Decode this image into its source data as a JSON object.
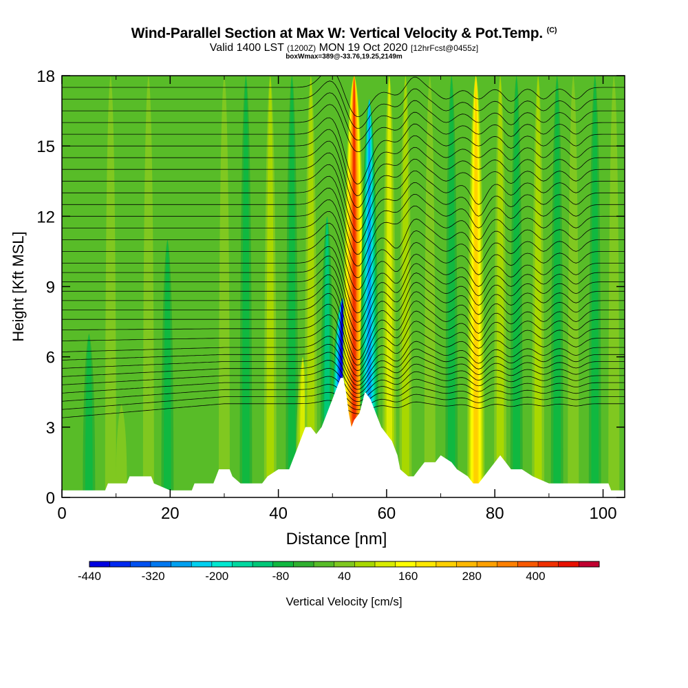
{
  "title": {
    "main": "Wind-Parallel Section at Max W: Vertical Velocity & Pot.Temp.",
    "copyright": "(C)",
    "valid_prefix": "Valid 1400 LST",
    "valid_utc": "(1200Z)",
    "valid_date": "MON 19 Oct 2020",
    "forecast": "[12hrFcst@0455z]",
    "subtitle": "boxWmax=389@-33.76,19.25,2149m"
  },
  "chart_data": {
    "type": "heatmap",
    "title": "Wind-Parallel Section at Max W: Vertical Velocity & Pot.Temp.",
    "xlabel": "Distance [nm]",
    "ylabel": "Height [Kft MSL]",
    "xlim": [
      0,
      104
    ],
    "ylim": [
      0,
      18
    ],
    "x_ticks": [
      "0",
      "20",
      "40",
      "60",
      "80",
      "100"
    ],
    "y_ticks": [
      "0",
      "3",
      "6",
      "9",
      "12",
      "15",
      "18"
    ],
    "colorbar": {
      "label": "Vertical Velocity [cm/s]",
      "tick_labels": [
        "-440",
        "-320",
        "-200",
        "-80",
        "40",
        "160",
        "280",
        "400"
      ],
      "min": -440,
      "max": 520,
      "step": 40,
      "colors": [
        "#0000e0",
        "#0028f0",
        "#0050f0",
        "#0078f0",
        "#00a0f0",
        "#00d0f0",
        "#00e8d0",
        "#00d8a0",
        "#00c878",
        "#10b840",
        "#30b030",
        "#58bc28",
        "#80c820",
        "#a8d800",
        "#d8ec00",
        "#ffff00",
        "#ffe800",
        "#ffd000",
        "#ffb800",
        "#ffa000",
        "#ff8000",
        "#f85800",
        "#f03000",
        "#e81000",
        "#c00030"
      ]
    },
    "terrain_kft": [
      [
        0,
        0.3
      ],
      [
        4,
        0.3
      ],
      [
        8,
        0.3
      ],
      [
        8.5,
        0.6
      ],
      [
        12,
        0.6
      ],
      [
        12.5,
        0.9
      ],
      [
        16.5,
        0.9
      ],
      [
        17,
        0.6
      ],
      [
        20,
        0.3
      ],
      [
        24,
        0.3
      ],
      [
        24.5,
        0.6
      ],
      [
        28,
        0.6
      ],
      [
        28.5,
        0.9
      ],
      [
        29,
        1.2
      ],
      [
        31,
        1.2
      ],
      [
        31.5,
        0.9
      ],
      [
        33,
        0.6
      ],
      [
        37,
        0.6
      ],
      [
        38,
        0.9
      ],
      [
        40,
        1.2
      ],
      [
        42,
        1.2
      ],
      [
        43,
        1.8
      ],
      [
        44,
        2.4
      ],
      [
        45,
        3.0
      ],
      [
        46,
        3.0
      ],
      [
        47,
        2.7
      ],
      [
        48,
        3.0
      ],
      [
        49,
        3.6
      ],
      [
        50,
        4.2
      ],
      [
        51,
        4.8
      ],
      [
        51.5,
        5.1
      ],
      [
        52,
        5.1
      ],
      [
        52.5,
        4.5
      ],
      [
        53,
        3.6
      ],
      [
        53.5,
        3.0
      ],
      [
        54,
        3.3
      ],
      [
        55,
        3.6
      ],
      [
        56,
        4.5
      ],
      [
        57,
        4.2
      ],
      [
        58,
        3.6
      ],
      [
        59,
        3.0
      ],
      [
        60,
        2.7
      ],
      [
        61,
        2.4
      ],
      [
        62,
        1.8
      ],
      [
        62.5,
        1.2
      ],
      [
        64,
        0.9
      ],
      [
        65,
        0.9
      ],
      [
        66,
        1.2
      ],
      [
        67,
        1.5
      ],
      [
        69,
        1.5
      ],
      [
        70,
        1.8
      ],
      [
        72,
        1.5
      ],
      [
        73,
        1.2
      ],
      [
        75,
        0.9
      ],
      [
        76,
        0.6
      ],
      [
        77,
        0.6
      ],
      [
        78,
        0.9
      ],
      [
        79,
        1.2
      ],
      [
        81,
        1.8
      ],
      [
        82,
        1.5
      ],
      [
        83,
        1.2
      ],
      [
        85,
        1.2
      ],
      [
        87,
        0.9
      ],
      [
        90,
        0.6
      ],
      [
        94,
        0.6
      ],
      [
        98,
        0.6
      ],
      [
        101,
        0.6
      ],
      [
        101.5,
        0.3
      ],
      [
        104,
        0.3
      ]
    ],
    "w_columns_cms": [
      {
        "x": 5,
        "w": -60,
        "top_kft": 7
      },
      {
        "x": 9,
        "w": 50,
        "top_kft": 18
      },
      {
        "x": 11,
        "w": 60,
        "top_kft": 4
      },
      {
        "x": 16,
        "w": 60,
        "top_kft": 18
      },
      {
        "x": 19.5,
        "w": -40,
        "top_kft": 11
      },
      {
        "x": 30,
        "w": 40,
        "top_kft": 18
      },
      {
        "x": 34,
        "w": -40,
        "top_kft": 18
      },
      {
        "x": 38.5,
        "w": 80,
        "top_kft": 18
      },
      {
        "x": 42.5,
        "w": -60,
        "top_kft": 18
      },
      {
        "x": 44.5,
        "w": 130,
        "top_kft": 6
      },
      {
        "x": 46,
        "w": 100,
        "top_kft": 18
      },
      {
        "x": 49,
        "w": -100,
        "top_kft": 12
      },
      {
        "x": 51.8,
        "w": -440,
        "top_kft": 8.5
      },
      {
        "x": 54,
        "w": 440,
        "top_kft": 18
      },
      {
        "x": 56.8,
        "w": -260,
        "top_kft": 17
      },
      {
        "x": 60.5,
        "w": 120,
        "top_kft": 18
      },
      {
        "x": 63.5,
        "w": 80,
        "top_kft": 18
      },
      {
        "x": 68,
        "w": 60,
        "top_kft": 18
      },
      {
        "x": 72,
        "w": -40,
        "top_kft": 18
      },
      {
        "x": 76.5,
        "w": 240,
        "top_kft": 18
      },
      {
        "x": 81,
        "w": 100,
        "top_kft": 18
      },
      {
        "x": 84,
        "w": -60,
        "top_kft": 18
      },
      {
        "x": 88,
        "w": 80,
        "top_kft": 18
      },
      {
        "x": 91.5,
        "w": -40,
        "top_kft": 18
      },
      {
        "x": 94.5,
        "w": 60,
        "top_kft": 18
      },
      {
        "x": 98.5,
        "w": -50,
        "top_kft": 18
      },
      {
        "x": 102,
        "w": 40,
        "top_kft": 18
      }
    ],
    "isentrope_levels_kft": [
      4.0,
      4.3,
      4.6,
      4.9,
      5.2,
      5.5,
      5.8,
      6.1,
      6.4,
      6.8,
      7.2,
      7.6,
      8.0,
      8.4,
      8.8,
      9.2,
      9.6,
      10.0,
      10.5,
      11.0,
      11.5,
      12.0,
      12.5,
      13.0,
      13.5,
      14.0,
      14.5,
      15.0,
      15.5,
      16.0,
      16.5,
      17.0,
      17.5
    ]
  }
}
